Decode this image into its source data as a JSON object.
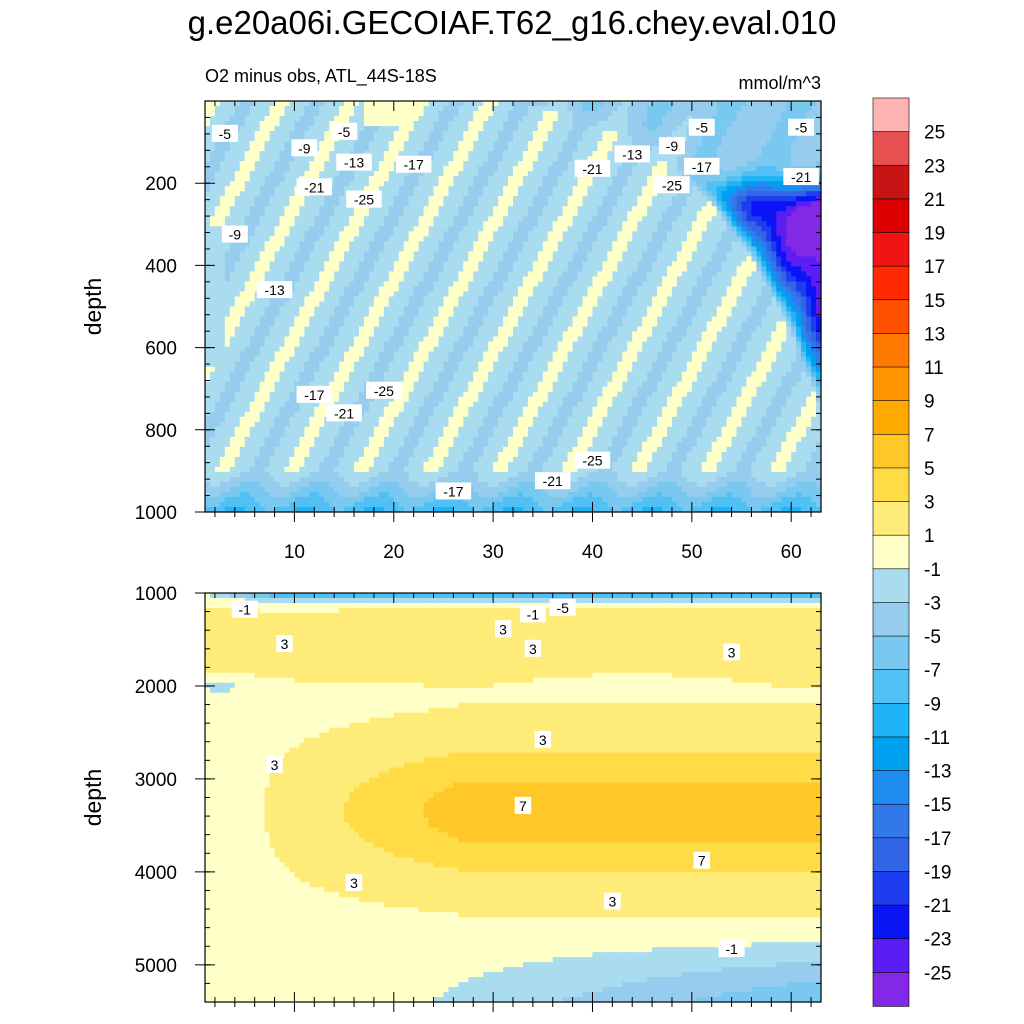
{
  "chart_data": [
    {
      "type": "contour",
      "title": "g.e20a06i.GECOIAF.T62_g16.chey.eval.010",
      "subtitle_left": "O2 minus obs, ATL_44S-18S",
      "subtitle_right": "mmol/m^3",
      "ylabel": "depth",
      "x_range": [
        1,
        63
      ],
      "x_ticks": [
        10,
        20,
        30,
        40,
        50,
        60
      ],
      "y_range": [
        0,
        1000
      ],
      "y_ticks": [
        200,
        400,
        600,
        800,
        1000
      ],
      "contour_labels": [
        {
          "text": "-5",
          "x": 3,
          "y": 80
        },
        {
          "text": "-5",
          "x": 15,
          "y": 75
        },
        {
          "text": "-5",
          "x": 51,
          "y": 65
        },
        {
          "text": "-5",
          "x": 61,
          "y": 65
        },
        {
          "text": "-9",
          "x": 11,
          "y": 115
        },
        {
          "text": "-9",
          "x": 48,
          "y": 110
        },
        {
          "text": "-13",
          "x": 16,
          "y": 150
        },
        {
          "text": "-13",
          "x": 44,
          "y": 130
        },
        {
          "text": "-17",
          "x": 22,
          "y": 155
        },
        {
          "text": "-17",
          "x": 51,
          "y": 160
        },
        {
          "text": "-21",
          "x": 12,
          "y": 210
        },
        {
          "text": "-21",
          "x": 40,
          "y": 165
        },
        {
          "text": "-21",
          "x": 61,
          "y": 185
        },
        {
          "text": "-25",
          "x": 17,
          "y": 240
        },
        {
          "text": "-25",
          "x": 48,
          "y": 205
        },
        {
          "text": "-9",
          "x": 4,
          "y": 325
        },
        {
          "text": "-13",
          "x": 8,
          "y": 460
        },
        {
          "text": "-17",
          "x": 12,
          "y": 715
        },
        {
          "text": "-21",
          "x": 15,
          "y": 760
        },
        {
          "text": "-25",
          "x": 19,
          "y": 705
        },
        {
          "text": "-25",
          "x": 40,
          "y": 875
        },
        {
          "text": "-21",
          "x": 36,
          "y": 925
        },
        {
          "text": "-17",
          "x": 26,
          "y": 950
        }
      ]
    },
    {
      "type": "contour",
      "ylabel": "depth",
      "x_range": [
        1,
        63
      ],
      "y_range": [
        1000,
        5400
      ],
      "y_ticks": [
        1000,
        2000,
        3000,
        4000,
        5000
      ],
      "contour_labels": [
        {
          "text": "-1",
          "x": 5,
          "y": 1180
        },
        {
          "text": "-5",
          "x": 37,
          "y": 1160
        },
        {
          "text": "-1",
          "x": 34,
          "y": 1230
        },
        {
          "text": "3",
          "x": 31,
          "y": 1390
        },
        {
          "text": "3",
          "x": 9,
          "y": 1550
        },
        {
          "text": "3",
          "x": 34,
          "y": 1600
        },
        {
          "text": "3",
          "x": 54,
          "y": 1640
        },
        {
          "text": "3",
          "x": 35,
          "y": 2580
        },
        {
          "text": "3",
          "x": 8,
          "y": 2850
        },
        {
          "text": "7",
          "x": 33,
          "y": 3290
        },
        {
          "text": "7",
          "x": 51,
          "y": 3880
        },
        {
          "text": "3",
          "x": 16,
          "y": 4120
        },
        {
          "text": "3",
          "x": 42,
          "y": 4320
        },
        {
          "text": "-1",
          "x": 54,
          "y": 4830
        }
      ]
    }
  ],
  "colorbar": {
    "labels": [
      "25",
      "23",
      "21",
      "19",
      "17",
      "15",
      "13",
      "11",
      "9",
      "7",
      "5",
      "3",
      "1",
      "-1",
      "-3",
      "-5",
      "-7",
      "-9",
      "-11",
      "-13",
      "-15",
      "-17",
      "-19",
      "-21",
      "-23",
      "-25"
    ],
    "colors": [
      "#ffb4b4",
      "#e65050",
      "#c81414",
      "#dc0000",
      "#f01414",
      "#ff2800",
      "#ff5000",
      "#ff7800",
      "#ff9600",
      "#ffaa00",
      "#ffc828",
      "#ffdc46",
      "#ffeb78",
      "#ffffc8",
      "#aadcf0",
      "#96cdee",
      "#78c8f0",
      "#50c0f5",
      "#1eb4f5",
      "#00a0f0",
      "#1e8cf0",
      "#3278ea",
      "#3264e6",
      "#1e3cf0",
      "#0a14f5",
      "#5a1ef5",
      "#8228e6"
    ]
  }
}
